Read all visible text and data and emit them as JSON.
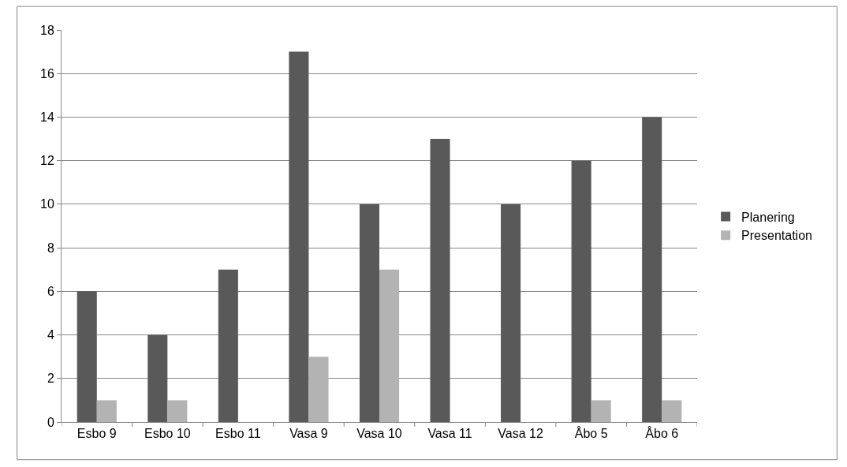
{
  "chart_data": {
    "type": "bar",
    "categories": [
      "Esbo 9",
      "Esbo 10",
      "Esbo 11",
      "Vasa 9",
      "Vasa 10",
      "Vasa 11",
      "Vasa 12",
      "Åbo 5",
      "Åbo 6"
    ],
    "series": [
      {
        "name": "Planering",
        "color": "#595959",
        "values": [
          6,
          4,
          7,
          17,
          10,
          13,
          10,
          12,
          14
        ]
      },
      {
        "name": "Presentation",
        "color": "#b3b3b3",
        "values": [
          1,
          1,
          0,
          3,
          7,
          0,
          0,
          1,
          1
        ]
      }
    ],
    "ylim": [
      0,
      18
    ],
    "yticks": [
      0,
      2,
      4,
      6,
      8,
      10,
      12,
      14,
      16,
      18
    ],
    "grid": "y",
    "legend": "right"
  }
}
